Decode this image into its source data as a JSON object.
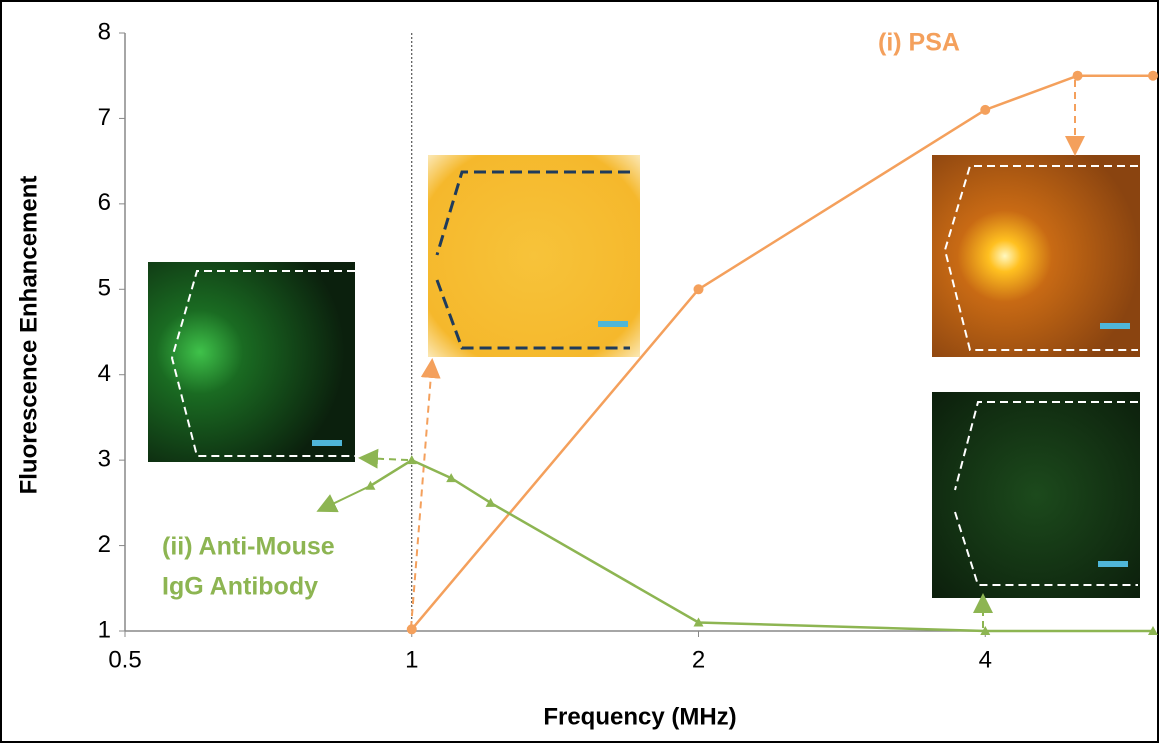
{
  "chart_data": {
    "type": "line",
    "x_label": "Frequency (MHz)",
    "y_label": "Fluorescence  Enhancement",
    "xscale": "log",
    "xlim": [
      0.5,
      6
    ],
    "xticks": [
      0.5,
      1,
      2,
      4
    ],
    "ylim": [
      1,
      8
    ],
    "yticks": [
      1,
      2,
      3,
      4,
      5,
      6,
      7,
      8
    ],
    "grid": false,
    "vline": 1,
    "series": [
      {
        "color": "#f4a05c",
        "marker": "circle",
        "x": [
          1,
          2,
          4,
          5,
          6
        ],
        "values": [
          1.02,
          5,
          7.1,
          7.5,
          7.5
        ]
      },
      {
        "color": "#8db552",
        "marker": "triangle",
        "x": [
          0.905,
          1,
          1.1,
          1.21,
          2,
          4,
          6
        ],
        "values": [
          2.7,
          3.0,
          2.79,
          2.5,
          1.1,
          1.0,
          1.0
        ]
      }
    ],
    "annotations": [
      {
        "lines": [
          "(i) PSA"
        ],
        "color": "#f4a05c"
      },
      {
        "lines": [
          "(ii) Anti-Mouse",
          "IgG Antibody"
        ],
        "color": "#8db552"
      }
    ]
  }
}
